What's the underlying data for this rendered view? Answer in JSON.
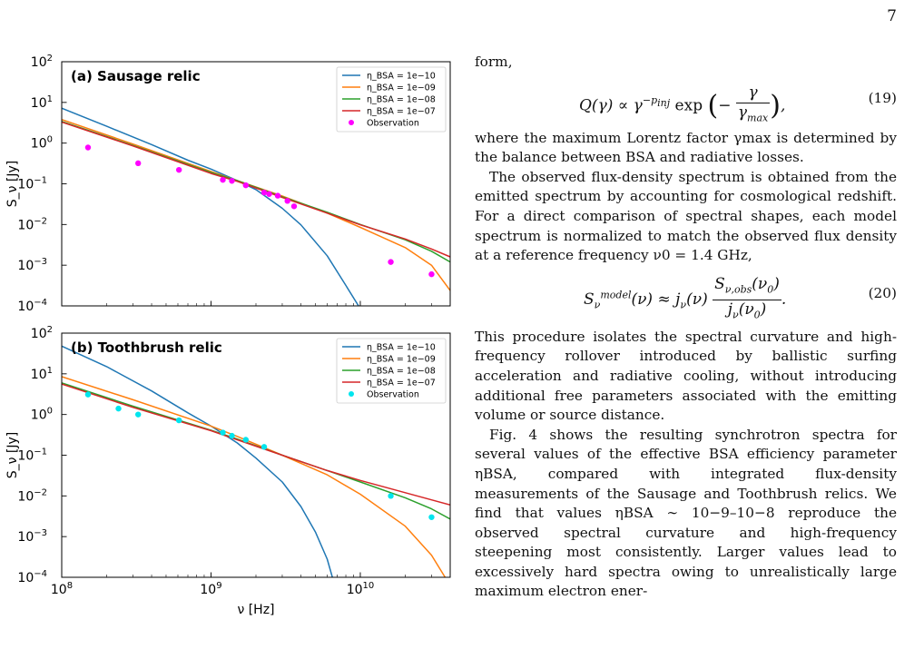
{
  "page_number": "7",
  "chart_data": [
    {
      "type": "line",
      "title": "(a) Sausage relic",
      "xlabel": "ν [Hz]",
      "ylabel": "S_ν [Jy]",
      "xscale": "log",
      "yscale": "log",
      "xlim": [
        100000000,
        40000000000
      ],
      "ylim": [
        0.0001,
        100
      ],
      "x_ticks": [
        {
          "v": 100000000,
          "m": "8"
        },
        {
          "v": 1000000000,
          "m": "9"
        },
        {
          "v": 10000000000,
          "m": "10"
        }
      ],
      "y_ticks": [
        {
          "v": 100,
          "m": "2"
        },
        {
          "v": 10,
          "m": "1"
        },
        {
          "v": 1,
          "m": "0"
        },
        {
          "v": 0.1,
          "m": "−1"
        },
        {
          "v": 0.01,
          "m": "−2"
        },
        {
          "v": 0.001,
          "m": "−3"
        },
        {
          "v": 0.0001,
          "m": "−4"
        }
      ],
      "legend_position": "top-right",
      "series": [
        {
          "name": "η_BSA = 1e−10",
          "color": "#1f77b4",
          "x": [
            100000000,
            200000000,
            400000000,
            700000000,
            1000000000,
            1500000000,
            2000000000,
            3000000000,
            4000000000,
            6000000000,
            8000000000,
            10000000000
          ],
          "y": [
            7.2,
            2.6,
            0.92,
            0.38,
            0.23,
            0.12,
            0.072,
            0.025,
            0.0098,
            0.0017,
            0.00032,
            8.5e-05
          ]
        },
        {
          "name": "η_BSA = 1e−09",
          "color": "#ff7f0e",
          "x": [
            100000000,
            300000000,
            1000000000,
            1500000000,
            3000000000,
            6000000000,
            10000000000,
            20000000000,
            30000000000,
            40000000000
          ],
          "y": [
            3.8,
            0.95,
            0.2,
            0.12,
            0.05,
            0.019,
            0.0085,
            0.0027,
            0.001,
            0.00024
          ]
        },
        {
          "name": "η_BSA = 1e−08",
          "color": "#2ca02c",
          "x": [
            100000000,
            300000000,
            1000000000,
            1500000000,
            3000000000,
            6000000000,
            10000000000,
            20000000000,
            30000000000,
            40000000000
          ],
          "y": [
            3.4,
            0.88,
            0.19,
            0.12,
            0.048,
            0.02,
            0.01,
            0.0042,
            0.0022,
            0.0012
          ]
        },
        {
          "name": "η_BSA = 1e−07",
          "color": "#d62728",
          "x": [
            100000000,
            300000000,
            1000000000,
            1500000000,
            3000000000,
            6000000000,
            10000000000,
            20000000000,
            30000000000,
            40000000000
          ],
          "y": [
            3.3,
            0.85,
            0.18,
            0.115,
            0.046,
            0.019,
            0.0098,
            0.0044,
            0.0025,
            0.0016
          ]
        }
      ],
      "observation": {
        "name": "Observation",
        "color": "#ff00ff",
        "x": [
          150000000,
          325000000,
          610000000,
          1200000000,
          1380000000,
          1710000000,
          2270000000,
          2450000000,
          2800000000,
          3250000000,
          3600000000,
          16000000000,
          30000000000
        ],
        "y": [
          0.78,
          0.32,
          0.22,
          0.125,
          0.118,
          0.092,
          0.061,
          0.056,
          0.051,
          0.038,
          0.028,
          0.0012,
          0.0006
        ]
      }
    },
    {
      "type": "line",
      "title": "(b) Toothbrush relic",
      "xlabel": "ν [Hz]",
      "ylabel": "S_ν [Jy]",
      "xscale": "log",
      "yscale": "log",
      "xlim": [
        100000000,
        40000000000
      ],
      "ylim": [
        0.0001,
        100
      ],
      "x_ticks": [
        {
          "v": 100000000,
          "m": "8"
        },
        {
          "v": 1000000000,
          "m": "9"
        },
        {
          "v": 10000000000,
          "m": "10"
        }
      ],
      "y_ticks": [
        {
          "v": 100,
          "m": "2"
        },
        {
          "v": 10,
          "m": "1"
        },
        {
          "v": 1,
          "m": "0"
        },
        {
          "v": 0.1,
          "m": "−1"
        },
        {
          "v": 0.01,
          "m": "−2"
        },
        {
          "v": 0.001,
          "m": "−3"
        },
        {
          "v": 0.0001,
          "m": "−4"
        }
      ],
      "legend_position": "top-right",
      "series": [
        {
          "name": "η_BSA = 1e−10",
          "color": "#1f77b4",
          "x": [
            100000000,
            200000000,
            400000000,
            700000000,
            1000000000,
            1500000000,
            2000000000,
            3000000000,
            4000000000,
            5000000000,
            6000000000,
            6500000000
          ],
          "y": [
            48,
            15,
            3.8,
            1.1,
            0.52,
            0.2,
            0.085,
            0.022,
            0.0055,
            0.0013,
            0.00028,
            0.0001
          ]
        },
        {
          "name": "η_BSA = 1e−09",
          "color": "#ff7f0e",
          "x": [
            100000000,
            300000000,
            1000000000,
            1500000000,
            3000000000,
            6000000000,
            10000000000,
            20000000000,
            30000000000,
            37000000000
          ],
          "y": [
            8.5,
            2.3,
            0.52,
            0.29,
            0.1,
            0.033,
            0.011,
            0.0018,
            0.00035,
            0.0001
          ]
        },
        {
          "name": "η_BSA = 1e−08",
          "color": "#2ca02c",
          "x": [
            100000000,
            300000000,
            1000000000,
            1500000000,
            3000000000,
            6000000000,
            10000000000,
            20000000000,
            30000000000,
            40000000000
          ],
          "y": [
            6,
            1.6,
            0.41,
            0.25,
            0.1,
            0.042,
            0.022,
            0.009,
            0.0048,
            0.0027
          ]
        },
        {
          "name": "η_BSA = 1e−07",
          "color": "#d62728",
          "x": [
            100000000,
            300000000,
            1000000000,
            1500000000,
            3000000000,
            6000000000,
            10000000000,
            20000000000,
            30000000000,
            40000000000
          ],
          "y": [
            5.6,
            1.5,
            0.4,
            0.24,
            0.1,
            0.042,
            0.024,
            0.012,
            0.008,
            0.006
          ]
        }
      ],
      "observation": {
        "name": "Observation",
        "color": "#00e5ee",
        "x": [
          150000000,
          240000000,
          325000000,
          610000000,
          1200000000,
          1380000000,
          1710000000,
          2270000000,
          16000000000,
          30000000000
        ],
        "y": [
          3.1,
          1.4,
          1.0,
          0.72,
          0.36,
          0.3,
          0.24,
          0.16,
          0.01,
          0.003
        ]
      }
    }
  ],
  "text": {
    "form_intro": "form,",
    "eq19_number": "(19)",
    "p_after19": "where the maximum Lorentz factor γmax is determined by the balance between BSA and radiative losses.",
    "p_redshift": "The observed flux-density spectrum is obtained from the emitted spectrum by accounting for cosmological redshift. For a direct comparison of spectral shapes, each model spectrum is normalized to match the observed flux density at a reference frequency ν0 = 1.4 GHz,",
    "eq20_number": "(20)",
    "p_procedure": "This procedure isolates the spectral curvature and high-frequency rollover introduced by ballistic surfing acceleration and radiative cooling, without introducing additional free parameters associated with the emitting volume or source distance.",
    "p_fig4": "Fig. 4 shows the resulting synchrotron spectra for several values of the effective BSA efficiency parameter ηBSA, compared with integrated flux-density measurements of the Sausage and Toothbrush relics. We find that values ηBSA ∼ 10−9–10−8 reproduce the observed spectral curvature and high-frequency steepening most consistently. Larger values lead to excessively hard spectra owing to unrealistically large maximum electron ener-"
  }
}
